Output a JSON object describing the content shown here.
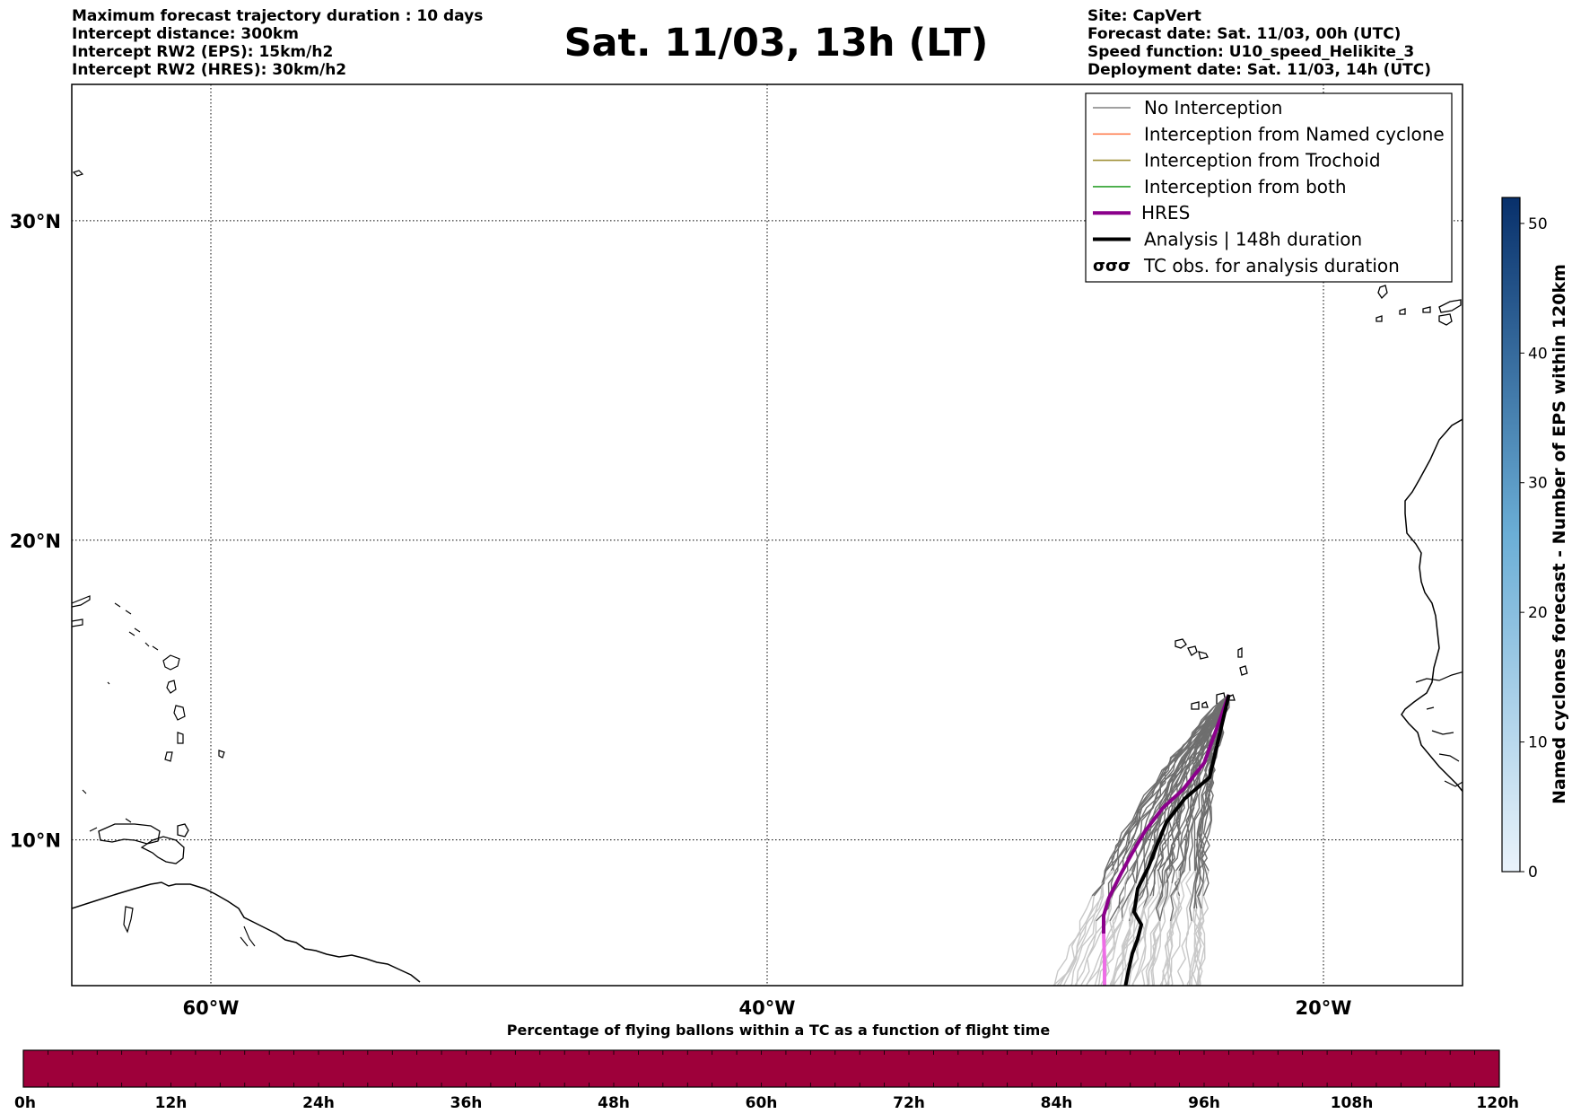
{
  "info_left": [
    "Maximum forecast trajectory duration : 10 days",
    "Intercept distance: 300km",
    "Intercept RW2 (EPS):  15km/h2",
    "Intercept RW2 (HRES): 30km/h2"
  ],
  "title": "Sat. 11/03, 13h (LT)",
  "info_right": [
    "Site: CapVert",
    "Forecast date: Sat. 11/03, 00h (UTC)",
    "Speed function: U10_speed_Helikite_3",
    "Deployment date: Sat. 11/03, 14h (UTC)"
  ],
  "map": {
    "lon_range": [
      -65,
      -15
    ],
    "lat_range": [
      5,
      34
    ],
    "lat_ticks": [
      {
        "value": 30,
        "label": "30°N"
      },
      {
        "value": 20,
        "label": "20°N"
      },
      {
        "value": 10,
        "label": "10°N"
      }
    ],
    "lon_ticks": [
      {
        "value": -60,
        "label": "60°W"
      },
      {
        "value": -40,
        "label": "40°W"
      },
      {
        "value": -20,
        "label": "20°W"
      }
    ],
    "release_point": {
      "lon": -23.4,
      "lat": 14.9
    },
    "site": "CapVert"
  },
  "legend": [
    {
      "label": "No Interception",
      "color": "#808080",
      "style": "thin"
    },
    {
      "label": "Interception from Named cyclone",
      "color": "#ff7f50",
      "style": "thin"
    },
    {
      "label": "Interception from Trochoid",
      "color": "#a09038",
      "style": "thin"
    },
    {
      "label": "Interception from both",
      "color": "#2ca02c",
      "style": "thin"
    },
    {
      "label": "HRES",
      "color": "#8b008b",
      "style": "thick"
    },
    {
      "label": "Analysis | 148h duration",
      "color": "#000000",
      "style": "thick"
    },
    {
      "label": "TC obs. for analysis duration",
      "color": "#000000",
      "style": "symbol"
    }
  ],
  "colorbar": {
    "label": "Named cyclones forecast - Number of EPS within 120km",
    "min": 0,
    "max": 52,
    "ticks": [
      0,
      10,
      20,
      30,
      40,
      50
    ],
    "color_low": "#eaf3fb",
    "color_high": "#08306b"
  },
  "timebar": {
    "title": "Percentage of flying ballons within a TC as a function of flight time",
    "labels": [
      "0h",
      "12h",
      "24h",
      "36h",
      "48h",
      "60h",
      "72h",
      "84h",
      "96h",
      "108h",
      "120h"
    ],
    "color": "#9e003a"
  }
}
